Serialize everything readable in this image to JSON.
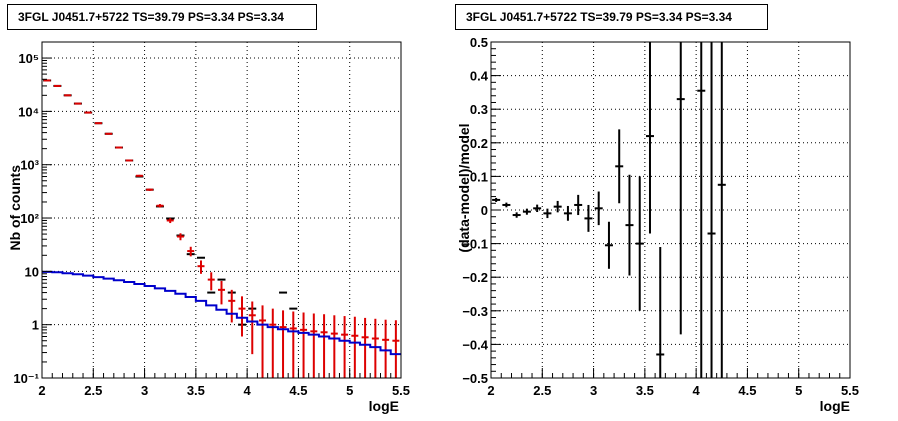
{
  "chart_data": [
    {
      "type": "scatter",
      "title": "3FGL J0451.7+5722 TS=39.79 PS=3.34 PS=3.34",
      "xlabel": "logE",
      "ylabel": "Nb of counts",
      "xlim": [
        2,
        5.5
      ],
      "ylim": [
        0.1,
        200000
      ],
      "yscale": "log",
      "grid": true,
      "x_ticks": [
        "2",
        "2.5",
        "3",
        "3.5",
        "4",
        "4.5",
        "5",
        "5.5"
      ],
      "y_ticks": [
        "10⁻¹",
        "1",
        "10",
        "10²",
        "10³",
        "10⁴",
        "10⁵"
      ],
      "series": [
        {
          "color": "#000000",
          "points": [
            {
              "x": 2.05,
              "y": 38000
            },
            {
              "x": 2.15,
              "y": 30000
            },
            {
              "x": 2.25,
              "y": 20000
            },
            {
              "x": 2.35,
              "y": 14000
            },
            {
              "x": 2.45,
              "y": 9500
            },
            {
              "x": 2.55,
              "y": 6000
            },
            {
              "x": 2.65,
              "y": 3800
            },
            {
              "x": 2.75,
              "y": 2100
            },
            {
              "x": 2.85,
              "y": 1200
            },
            {
              "x": 2.95,
              "y": 600
            },
            {
              "x": 3.05,
              "y": 340
            },
            {
              "x": 3.15,
              "y": 165
            },
            {
              "x": 3.25,
              "y": 98
            },
            {
              "x": 3.35,
              "y": 47
            },
            {
              "x": 3.45,
              "y": 21
            },
            {
              "x": 3.55,
              "y": 18
            },
            {
              "x": 3.65,
              "y": 4
            },
            {
              "x": 3.75,
              "y": 7
            },
            {
              "x": 3.85,
              "y": 4
            },
            {
              "x": 3.95,
              "y": 1
            },
            {
              "x": 4.05,
              "y": 2
            },
            {
              "x": 4.35,
              "y": 4
            },
            {
              "x": 4.45,
              "y": 2
            }
          ]
        },
        {
          "color": "#dd0000",
          "points": [
            {
              "x": 2.05,
              "y": 38000,
              "err": 200
            },
            {
              "x": 2.15,
              "y": 30000,
              "err": 170
            },
            {
              "x": 2.25,
              "y": 20000,
              "err": 140
            },
            {
              "x": 2.35,
              "y": 14000,
              "err": 120
            },
            {
              "x": 2.45,
              "y": 9500,
              "err": 100
            },
            {
              "x": 2.55,
              "y": 6000,
              "err": 80
            },
            {
              "x": 2.65,
              "y": 3800,
              "err": 60
            },
            {
              "x": 2.75,
              "y": 2100,
              "err": 45
            },
            {
              "x": 2.85,
              "y": 1200,
              "err": 35
            },
            {
              "x": 2.95,
              "y": 620,
              "err": 25
            },
            {
              "x": 3.05,
              "y": 340,
              "err": 18
            },
            {
              "x": 3.15,
              "y": 170,
              "err": 13
            },
            {
              "x": 3.25,
              "y": 90,
              "err": 9.5
            },
            {
              "x": 3.35,
              "y": 45,
              "err": 6.7
            },
            {
              "x": 3.45,
              "y": 24,
              "err": 4.9
            },
            {
              "x": 3.55,
              "y": 12.5,
              "err": 3.5
            },
            {
              "x": 3.65,
              "y": 7,
              "err": 2.6
            },
            {
              "x": 3.75,
              "y": 4.5,
              "err": 2.1
            },
            {
              "x": 3.85,
              "y": 2.8,
              "err": 1.7
            },
            {
              "x": 3.95,
              "y": 2.0,
              "err": 1.4
            },
            {
              "x": 4.05,
              "y": 1.5,
              "err": 1.22
            },
            {
              "x": 4.15,
              "y": 1.2,
              "err": 1.1
            },
            {
              "x": 4.25,
              "y": 1.0,
              "err": 1.0
            },
            {
              "x": 4.35,
              "y": 0.9,
              "err": 0.95
            },
            {
              "x": 4.45,
              "y": 0.85,
              "err": 0.92
            },
            {
              "x": 4.55,
              "y": 0.8,
              "err": 0.89
            },
            {
              "x": 4.65,
              "y": 0.75,
              "err": 0.87
            },
            {
              "x": 4.75,
              "y": 0.72,
              "err": 0.85
            },
            {
              "x": 4.85,
              "y": 0.68,
              "err": 0.82
            },
            {
              "x": 4.95,
              "y": 0.65,
              "err": 0.8
            },
            {
              "x": 5.05,
              "y": 0.62,
              "err": 0.79
            },
            {
              "x": 5.15,
              "y": 0.58,
              "err": 0.76
            },
            {
              "x": 5.25,
              "y": 0.55,
              "err": 0.74
            },
            {
              "x": 5.35,
              "y": 0.52,
              "err": 0.72
            },
            {
              "x": 5.45,
              "y": 0.5,
              "err": 0.71
            }
          ]
        },
        {
          "color": "#0000cc",
          "step": true,
          "edges": [
            2.0,
            2.1,
            2.2,
            2.3,
            2.4,
            2.5,
            2.6,
            2.7,
            2.8,
            2.9,
            3.0,
            3.1,
            3.2,
            3.3,
            3.4,
            3.5,
            3.6,
            3.7,
            3.8,
            3.9,
            4.0,
            4.1,
            4.2,
            4.3,
            4.4,
            4.5,
            4.6,
            4.7,
            4.8,
            4.9,
            5.0,
            5.1,
            5.2,
            5.3,
            5.4,
            5.5
          ],
          "values": [
            9.8,
            9.6,
            9.2,
            8.8,
            8.3,
            7.8,
            7.3,
            6.8,
            6.3,
            5.8,
            5.3,
            4.8,
            4.3,
            3.8,
            3.3,
            2.8,
            2.3,
            1.9,
            1.6,
            1.35,
            1.15,
            1.0,
            0.9,
            0.82,
            0.75,
            0.7,
            0.65,
            0.6,
            0.55,
            0.5,
            0.46,
            0.42,
            0.38,
            0.33,
            0.28
          ]
        }
      ]
    },
    {
      "type": "scatter",
      "title": "3FGL J0451.7+5722 TS=39.79 PS=3.34 PS=3.34",
      "xlabel": "logE",
      "ylabel": "(data-model)/model",
      "xlim": [
        2,
        5.5
      ],
      "ylim": [
        -0.5,
        0.5
      ],
      "grid": true,
      "x_ticks": [
        "2",
        "2.5",
        "3",
        "3.5",
        "4",
        "4.5",
        "5",
        "5.5"
      ],
      "y_ticks": [
        "−0.5",
        "−0.4",
        "−0.3",
        "−0.2",
        "−0.1",
        "0",
        "0.1",
        "0.2",
        "0.3",
        "0.4",
        "0.5"
      ],
      "series": [
        {
          "color": "#000000",
          "points": [
            {
              "x": 2.05,
              "y": 0.03,
              "err": 0.006
            },
            {
              "x": 2.15,
              "y": 0.015,
              "err": 0.007
            },
            {
              "x": 2.25,
              "y": -0.015,
              "err": 0.008
            },
            {
              "x": 2.35,
              "y": -0.005,
              "err": 0.009
            },
            {
              "x": 2.45,
              "y": 0.005,
              "err": 0.011
            },
            {
              "x": 2.55,
              "y": -0.01,
              "err": 0.014
            },
            {
              "x": 2.65,
              "y": 0.01,
              "err": 0.017
            },
            {
              "x": 2.75,
              "y": -0.01,
              "err": 0.022
            },
            {
              "x": 2.85,
              "y": 0.015,
              "err": 0.03
            },
            {
              "x": 2.95,
              "y": -0.025,
              "err": 0.04
            },
            {
              "x": 3.05,
              "y": 0.005,
              "err": 0.05
            },
            {
              "x": 3.15,
              "y": -0.105,
              "err": 0.07
            },
            {
              "x": 3.25,
              "y": 0.13,
              "err": 0.11
            },
            {
              "x": 3.35,
              "y": -0.045,
              "err": 0.15
            },
            {
              "x": 3.45,
              "y": -0.1,
              "err": 0.2
            },
            {
              "x": 3.55,
              "y": 0.22,
              "err": 0.29
            },
            {
              "x": 3.65,
              "y": -0.43,
              "err": 0.32
            },
            {
              "x": 3.85,
              "y": 0.33,
              "err": 0.7
            },
            {
              "x": 4.05,
              "y": 0.355,
              "err": 1.0
            },
            {
              "x": 4.15,
              "y": -0.07,
              "err": 1.0
            },
            {
              "x": 4.25,
              "y": 0.075,
              "err": 1.0
            }
          ]
        }
      ]
    }
  ]
}
